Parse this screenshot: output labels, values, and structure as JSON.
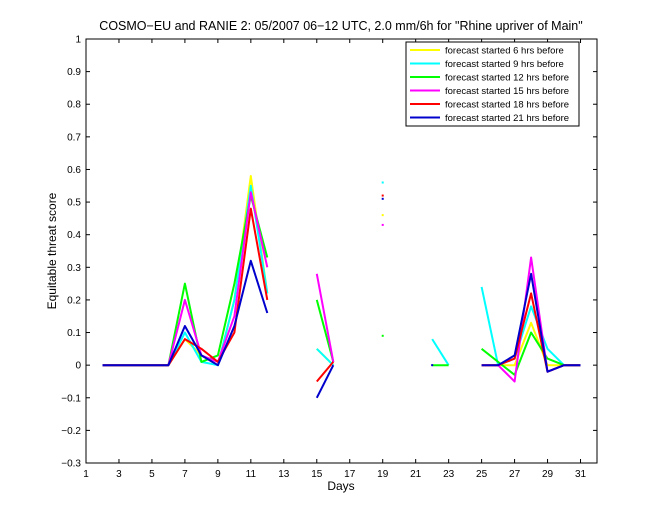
{
  "chart_data": {
    "type": "line",
    "title": "COSMO−EU and RANIE 2: 05/2007 06−12 UTC, 2.0 mm/6h for \"Rhine upriver of Main\"",
    "xlabel": "Days",
    "ylabel": "Equitable threat score",
    "xlim": [
      1,
      32
    ],
    "ylim": [
      -0.3,
      1
    ],
    "x_ticks": [
      1,
      3,
      5,
      7,
      9,
      11,
      13,
      15,
      17,
      19,
      21,
      23,
      25,
      27,
      29,
      31
    ],
    "x_tick_labels": [
      "1",
      "3",
      "5",
      "7",
      "9",
      "11",
      "13",
      "15",
      "17",
      "19",
      "21",
      "23",
      "25",
      "27",
      "29",
      "31"
    ],
    "y_ticks": [
      -0.3,
      -0.2,
      -0.1,
      0,
      0.1,
      0.2,
      0.3,
      0.4,
      0.5,
      0.6,
      0.7,
      0.8,
      0.9,
      1
    ],
    "y_tick_labels": [
      "−0.3",
      "−0.2",
      "−0.1",
      "0",
      "0.1",
      "0.2",
      "0.3",
      "0.4",
      "0.5",
      "0.6",
      "0.7",
      "0.8",
      "0.9",
      "1"
    ],
    "grid": false,
    "legend_position": "top-right",
    "x": [
      2,
      3,
      4,
      5,
      6,
      7,
      8,
      9,
      10,
      11,
      12,
      13,
      14,
      15,
      16,
      17,
      18,
      19,
      20,
      21,
      22,
      23,
      24,
      25,
      26,
      27,
      28,
      29,
      30,
      31
    ],
    "series": [
      {
        "name": "forecast started 6 hrs before",
        "color": "#ffff00",
        "values": [
          0,
          0,
          0,
          0,
          0,
          0.08,
          0.03,
          0,
          0.2,
          0.58,
          0.22,
          null,
          null,
          0.05,
          0,
          null,
          null,
          0.46,
          null,
          null,
          null,
          null,
          null,
          0,
          0,
          0,
          0.13,
          0,
          0,
          0
        ]
      },
      {
        "name": "forecast started 9 hrs before",
        "color": "#00ffff",
        "values": [
          0,
          0,
          0,
          0,
          0,
          0.1,
          0.01,
          0,
          0.2,
          0.55,
          0.22,
          null,
          null,
          0.05,
          0,
          null,
          null,
          0.56,
          null,
          null,
          0.08,
          0,
          null,
          0.24,
          0,
          0.02,
          0.18,
          0.05,
          0,
          0
        ]
      },
      {
        "name": "forecast started 12 hrs before",
        "color": "#00ff00",
        "values": [
          0,
          0,
          0,
          0,
          0,
          0.25,
          0.01,
          0.03,
          0.25,
          0.52,
          0.33,
          null,
          null,
          0.2,
          0.01,
          null,
          null,
          0.09,
          null,
          null,
          0,
          0,
          null,
          0.05,
          0.01,
          -0.03,
          0.1,
          0.02,
          0,
          0
        ]
      },
      {
        "name": "forecast started 15 hrs before",
        "color": "#ff00ff",
        "values": [
          0,
          0,
          0,
          0,
          0,
          0.2,
          0.03,
          0.01,
          0.15,
          0.53,
          0.3,
          null,
          null,
          0.28,
          0.01,
          null,
          null,
          0.43,
          null,
          null,
          null,
          null,
          null,
          0,
          0,
          -0.05,
          0.33,
          -0.02,
          0,
          0
        ]
      },
      {
        "name": "forecast started 18 hrs before",
        "color": "#ff0000",
        "values": [
          0,
          0,
          0,
          0,
          0,
          0.08,
          0.05,
          0.01,
          0.1,
          0.48,
          0.2,
          null,
          null,
          -0.05,
          0.01,
          null,
          null,
          0.52,
          null,
          null,
          null,
          null,
          null,
          0,
          0,
          0.02,
          0.22,
          -0.02,
          0,
          0
        ]
      },
      {
        "name": "forecast started 21 hrs before",
        "color": "#0000cc",
        "values": [
          0,
          0,
          0,
          0,
          0,
          0.12,
          0.03,
          0,
          0.12,
          0.32,
          0.16,
          null,
          null,
          -0.1,
          0,
          null,
          null,
          0.51,
          null,
          null,
          0,
          null,
          null,
          0,
          0,
          0.03,
          0.28,
          -0.02,
          0,
          0
        ]
      }
    ]
  }
}
